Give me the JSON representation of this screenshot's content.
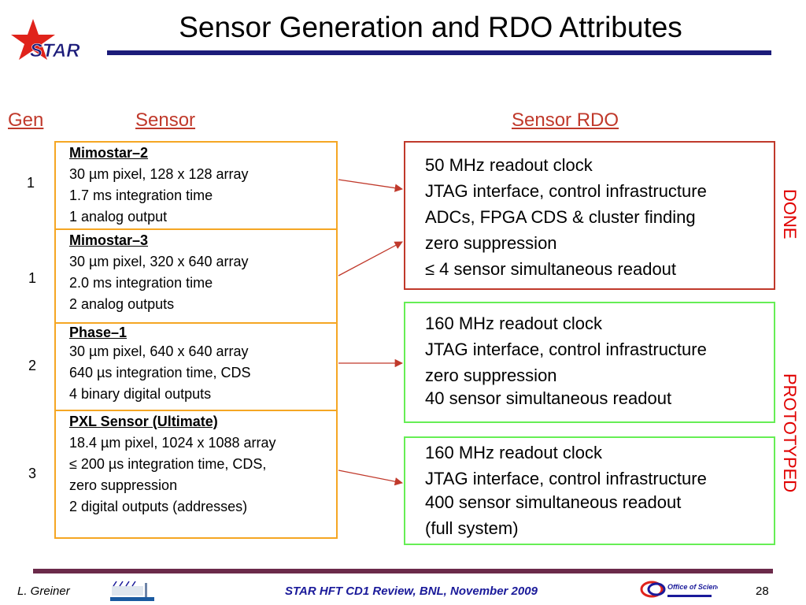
{
  "slide": {
    "title": "Sensor Generation and RDO Attributes",
    "logo_text": "STAR"
  },
  "headers": {
    "gen": "Gen",
    "sensor": "Sensor",
    "sensor_rdo": "Sensor RDO"
  },
  "sensors": [
    {
      "gen": "1",
      "name": "Mimostar–2",
      "lines": [
        "30 µm pixel, 128 x 128 array",
        "1.7 ms integration time",
        "1 analog output"
      ]
    },
    {
      "gen": "1",
      "name": "Mimostar–3",
      "lines": [
        "30 µm pixel, 320 x 640 array",
        "2.0 ms integration time",
        "2 analog outputs"
      ]
    },
    {
      "gen": "2",
      "name": "Phase–1",
      "lines": [
        "30 µm pixel, 640 x 640 array",
        "640 µs integration time, CDS",
        "4 binary digital outputs"
      ]
    },
    {
      "gen": "3",
      "name": "PXL Sensor (Ultimate)",
      "lines": [
        "18.4 µm pixel, 1024 x 1088 array",
        "≤ 200 µs integration time, CDS,",
        "zero suppression",
        "2 digital outputs (addresses)"
      ]
    }
  ],
  "rdos": [
    {
      "lines": [
        "50 MHz readout clock",
        "JTAG interface, control infrastructure",
        "ADCs, FPGA CDS & cluster finding",
        "zero suppression",
        "≤ 4 sensor simultaneous readout"
      ]
    },
    {
      "lines": [
        "160 MHz readout clock",
        "JTAG interface, control infrastructure",
        "zero suppression",
        "40 sensor simultaneous readout"
      ]
    },
    {
      "lines": [
        "160 MHz readout clock",
        "JTAG interface, control infrastructure",
        "400 sensor simultaneous readout",
        "(full system)"
      ]
    }
  ],
  "status": {
    "done": "DONE",
    "prototyped": "PROTOTYPED"
  },
  "footer": {
    "author": "L. Greiner",
    "event": "STAR HFT CD1 Review, BNL, November 2009",
    "page": "28",
    "office_logo_text": "Office of Science"
  }
}
